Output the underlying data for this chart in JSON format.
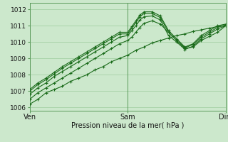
{
  "xlabel": "Pression niveau de la mer( hPa )",
  "ylim": [
    1005.8,
    1012.4
  ],
  "xlim": [
    0,
    48
  ],
  "yticks": [
    1006,
    1007,
    1008,
    1009,
    1010,
    1011,
    1012
  ],
  "xticks": [
    0,
    24,
    48
  ],
  "xticklabels": [
    "Ven",
    "Sam",
    "Dim"
  ],
  "bg_color": "#cce8cc",
  "grid_color": "#aad4aa",
  "line_color": "#1a6b1a",
  "series": [
    {
      "x": [
        0,
        2,
        4,
        6,
        8,
        10,
        12,
        14,
        16,
        18,
        20,
        22,
        24,
        26,
        28,
        30,
        32,
        34,
        36,
        38,
        40,
        42,
        44,
        46,
        48
      ],
      "y": [
        1006.2,
        1006.5,
        1006.9,
        1007.1,
        1007.3,
        1007.6,
        1007.8,
        1008.0,
        1008.3,
        1008.5,
        1008.8,
        1009.0,
        1009.2,
        1009.5,
        1009.7,
        1009.95,
        1010.1,
        1010.25,
        1010.4,
        1010.5,
        1010.65,
        1010.75,
        1010.85,
        1010.95,
        1011.0
      ]
    },
    {
      "x": [
        0,
        2,
        4,
        6,
        8,
        10,
        12,
        14,
        16,
        18,
        20,
        22,
        24,
        25,
        26,
        27,
        28,
        30,
        32,
        34,
        36,
        38,
        40,
        42,
        44,
        46,
        48
      ],
      "y": [
        1006.5,
        1006.9,
        1007.2,
        1007.5,
        1007.8,
        1008.1,
        1008.4,
        1008.7,
        1009.0,
        1009.3,
        1009.6,
        1009.9,
        1010.1,
        1010.3,
        1010.6,
        1010.9,
        1011.15,
        1011.3,
        1011.1,
        1010.6,
        1010.1,
        1009.6,
        1009.7,
        1010.1,
        1010.35,
        1010.6,
        1011.0
      ]
    },
    {
      "x": [
        0,
        2,
        4,
        6,
        8,
        10,
        12,
        14,
        16,
        18,
        20,
        22,
        24,
        25,
        26,
        27,
        28,
        30,
        32,
        34,
        36,
        38,
        40,
        42,
        44,
        46,
        48
      ],
      "y": [
        1006.8,
        1007.2,
        1007.5,
        1007.9,
        1008.2,
        1008.5,
        1008.8,
        1009.1,
        1009.4,
        1009.7,
        1010.0,
        1010.3,
        1010.4,
        1010.7,
        1011.0,
        1011.35,
        1011.55,
        1011.6,
        1011.35,
        1010.4,
        1010.0,
        1009.55,
        1009.75,
        1010.2,
        1010.5,
        1010.8,
        1011.0
      ]
    },
    {
      "x": [
        0,
        2,
        4,
        6,
        8,
        10,
        12,
        14,
        16,
        18,
        20,
        22,
        24,
        25,
        26,
        27,
        28,
        30,
        32,
        34,
        36,
        38,
        40,
        42,
        44,
        46,
        48
      ],
      "y": [
        1007.0,
        1007.4,
        1007.7,
        1008.05,
        1008.4,
        1008.7,
        1009.0,
        1009.3,
        1009.6,
        1009.9,
        1010.2,
        1010.5,
        1010.5,
        1010.85,
        1011.2,
        1011.55,
        1011.75,
        1011.75,
        1011.5,
        1010.6,
        1010.1,
        1009.65,
        1009.85,
        1010.3,
        1010.6,
        1010.9,
        1011.05
      ]
    },
    {
      "x": [
        0,
        2,
        4,
        6,
        8,
        10,
        12,
        14,
        16,
        18,
        20,
        22,
        24,
        25,
        26,
        27,
        28,
        30,
        32,
        34,
        36,
        38,
        40,
        42,
        44,
        46,
        48
      ],
      "y": [
        1007.1,
        1007.5,
        1007.8,
        1008.15,
        1008.5,
        1008.8,
        1009.1,
        1009.4,
        1009.7,
        1010.0,
        1010.3,
        1010.6,
        1010.6,
        1010.95,
        1011.3,
        1011.65,
        1011.85,
        1011.85,
        1011.6,
        1010.7,
        1010.2,
        1009.7,
        1009.9,
        1010.4,
        1010.7,
        1011.0,
        1011.1
      ]
    }
  ]
}
